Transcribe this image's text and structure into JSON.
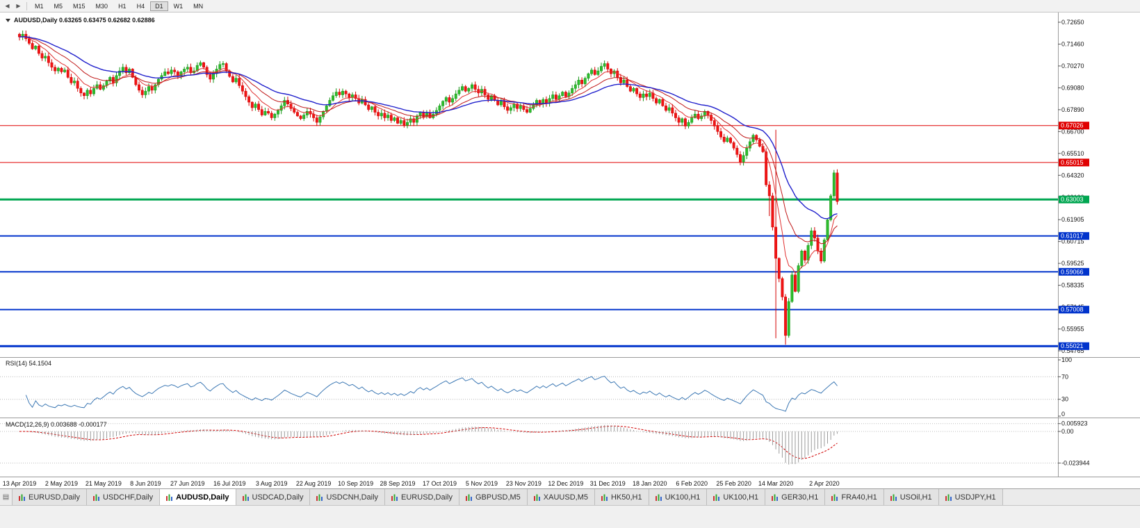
{
  "toolbar": {
    "timeframes": [
      "M1",
      "M5",
      "M15",
      "M30",
      "H1",
      "H4",
      "D1",
      "W1",
      "MN"
    ],
    "active": "D1"
  },
  "quote_line": "AUDUSD,Daily 0.63265 0.63475 0.62682 0.62886",
  "chart_data": {
    "type": "candlestick",
    "symbol": "AUDUSD",
    "timeframe": "Daily",
    "ohlc_current": {
      "open": 0.63265,
      "high": 0.63475,
      "low": 0.62682,
      "close": 0.62886
    },
    "closes": [
      0.7185,
      0.72,
      0.7175,
      0.715,
      0.712,
      0.7135,
      0.7095,
      0.707,
      0.708,
      0.7045,
      0.702,
      0.7,
      0.7015,
      0.6995,
      0.7005,
      0.6965,
      0.6935,
      0.6945,
      0.6905,
      0.688,
      0.6865,
      0.6895,
      0.6875,
      0.6905,
      0.6925,
      0.69,
      0.692,
      0.6945,
      0.6965,
      0.6935,
      0.6975,
      0.7,
      0.702,
      0.699,
      0.701,
      0.6965,
      0.6925,
      0.6895,
      0.687,
      0.689,
      0.6915,
      0.6895,
      0.6925,
      0.6955,
      0.6975,
      0.6995,
      0.6985,
      0.7005,
      0.6995,
      0.6975,
      0.6995,
      0.701,
      0.702,
      0.699,
      0.7,
      0.703,
      0.7045,
      0.702,
      0.698,
      0.6955,
      0.6985,
      0.701,
      0.7035,
      0.704,
      0.7,
      0.697,
      0.694,
      0.696,
      0.692,
      0.689,
      0.686,
      0.683,
      0.68,
      0.682,
      0.679,
      0.676,
      0.678,
      0.677,
      0.6745,
      0.6765,
      0.6785,
      0.681,
      0.684,
      0.682,
      0.6795,
      0.6775,
      0.6755,
      0.674,
      0.676,
      0.678,
      0.6765,
      0.6745,
      0.672,
      0.675,
      0.678,
      0.681,
      0.684,
      0.6865,
      0.6885,
      0.687,
      0.689,
      0.6875,
      0.6855,
      0.687,
      0.685,
      0.6825,
      0.6845,
      0.6815,
      0.679,
      0.6805,
      0.6775,
      0.6755,
      0.677,
      0.6745,
      0.676,
      0.673,
      0.6745,
      0.6715,
      0.673,
      0.6705,
      0.672,
      0.674,
      0.672,
      0.6755,
      0.6775,
      0.675,
      0.677,
      0.6745,
      0.6765,
      0.6785,
      0.681,
      0.6835,
      0.6855,
      0.683,
      0.685,
      0.6875,
      0.6895,
      0.6915,
      0.689,
      0.6905,
      0.6925,
      0.69,
      0.688,
      0.69,
      0.687,
      0.6845,
      0.6865,
      0.684,
      0.6815,
      0.6835,
      0.6805,
      0.6785,
      0.68,
      0.682,
      0.6795,
      0.681,
      0.679,
      0.6775,
      0.6795,
      0.6815,
      0.684,
      0.682,
      0.6845,
      0.6825,
      0.685,
      0.687,
      0.6845,
      0.6865,
      0.6885,
      0.686,
      0.688,
      0.6905,
      0.6925,
      0.695,
      0.693,
      0.696,
      0.6985,
      0.7005,
      0.698,
      0.7,
      0.7025,
      0.704,
      0.701,
      0.6985,
      0.7,
      0.6965,
      0.6935,
      0.695,
      0.6915,
      0.689,
      0.6905,
      0.6875,
      0.6855,
      0.6875,
      0.686,
      0.688,
      0.685,
      0.6825,
      0.6845,
      0.681,
      0.6785,
      0.68,
      0.677,
      0.6745,
      0.672,
      0.674,
      0.67,
      0.672,
      0.6745,
      0.6765,
      0.674,
      0.6755,
      0.678,
      0.676,
      0.673,
      0.67,
      0.667,
      0.664,
      0.6615,
      0.6635,
      0.661,
      0.658,
      0.6545,
      0.6505,
      0.654,
      0.658,
      0.6615,
      0.665,
      0.6625,
      0.659,
      0.656,
      0.638,
      0.632,
      0.615,
      0.598,
      0.587,
      0.577,
      0.556,
      0.5745,
      0.589,
      0.58,
      0.594,
      0.602,
      0.597,
      0.605,
      0.613,
      0.609,
      0.602,
      0.5965,
      0.608,
      0.619,
      0.632,
      0.6445,
      0.6289
    ],
    "wick_overrides": {
      "0": {
        "high": 0.7208
      },
      "232": {
        "low": 0.621
      },
      "234": {
        "high": 0.668,
        "low": 0.5545
      },
      "237": {
        "low": 0.551
      }
    },
    "y_axis_ticks": [
      "0.72650",
      "0.71460",
      "0.70270",
      "0.69080",
      "0.67890",
      "0.66700",
      "0.65510",
      "0.64320",
      "0.63130",
      "0.61905",
      "0.60715",
      "0.59525",
      "0.58335",
      "0.57145",
      "0.55955",
      "0.54765"
    ],
    "x_axis_labels": [
      "13 Apr 2019",
      "2 May 2019",
      "21 May 2019",
      "8 Jun 2019",
      "27 Jun 2019",
      "16 Jul 2019",
      "3 Aug 2019",
      "22 Aug 2019",
      "10 Sep 2019",
      "28 Sep 2019",
      "17 Oct 2019",
      "5 Nov 2019",
      "23 Nov 2019",
      "12 Dec 2019",
      "31 Dec 2019",
      "18 Jan 2020",
      "6 Feb 2020",
      "25 Feb 2020",
      "14 Mar 2020",
      "2 Apr 2020"
    ],
    "hlines": [
      {
        "price": 0.67026,
        "label": "0.67026",
        "color": "#e00000",
        "width": 1
      },
      {
        "price": 0.65015,
        "label": "0.65015",
        "color": "#e00000",
        "width": 1
      },
      {
        "price": 0.63003,
        "label": "0.63003",
        "color": "#00a651",
        "width": 3
      },
      {
        "price": 0.61017,
        "label": "0.61017",
        "color": "#0033cc",
        "width": 2
      },
      {
        "price": 0.59066,
        "label": "0.59066",
        "color": "#0033cc",
        "width": 2
      },
      {
        "price": 0.57008,
        "label": "0.57008",
        "color": "#0033cc",
        "width": 2
      },
      {
        "price": 0.55021,
        "label": "0.55021",
        "color": "#0033cc",
        "width": 3
      }
    ],
    "moving_averages": [
      {
        "period": 8,
        "color": "#e03030"
      },
      {
        "period": 17,
        "color": "#c01818"
      },
      {
        "period": 32,
        "color": "#2020cc"
      }
    ],
    "rsi": {
      "label": "RSI(14) 54.1504",
      "period": 14,
      "current": 54.1504,
      "levels": [
        "100",
        "70",
        "30",
        "0"
      ],
      "level_values": [
        100,
        70,
        30,
        0
      ],
      "color": "#3c78b4"
    },
    "macd": {
      "label": "MACD(12,26,9) 0.003688 -0.000177",
      "fast": 12,
      "slow": 26,
      "signal": 9,
      "current_main": 0.003688,
      "current_signal": -0.000177,
      "axis_labels": [
        {
          "text": "0.005923",
          "value": 0.005923
        },
        {
          "text": "0.00",
          "value": 0
        },
        {
          "text": "-0.023944",
          "value": -0.023944
        }
      ],
      "hist_color": "#9a9a9a",
      "signal_color": "#d00000"
    }
  },
  "tabs": {
    "active_index": 2,
    "items": [
      "EURUSD,Daily",
      "USDCHF,Daily",
      "AUDUSD,Daily",
      "USDCAD,Daily",
      "USDCNH,Daily",
      "EURUSD,Daily",
      "GBPUSD,M5",
      "XAUUSD,M5",
      "HK50,H1",
      "UK100,H1",
      "UK100,H1",
      "GER30,H1",
      "FRA40,H1",
      "USOil,H1",
      "USDJPY,H1"
    ]
  }
}
